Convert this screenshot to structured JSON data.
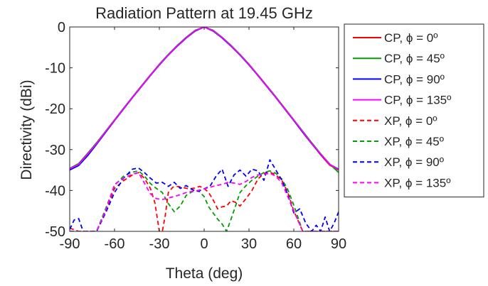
{
  "chart_data": {
    "type": "line",
    "title": "Radiation Pattern at 19.45 GHz",
    "xlabel": "Theta (deg)",
    "ylabel": "Directivity (dBi)",
    "xlim": [
      -90,
      90
    ],
    "ylim": [
      -50,
      0
    ],
    "xticks": [
      -90,
      -60,
      -30,
      0,
      30,
      60,
      90
    ],
    "xtick_labels": [
      "-90",
      "-60",
      "-30",
      "0",
      "30",
      "60",
      "90"
    ],
    "yticks": [
      0,
      -10,
      -20,
      -30,
      -40,
      -50
    ],
    "ytick_labels": [
      "0",
      "-10",
      "-20",
      "-30",
      "-40",
      "-50"
    ],
    "legend_position": "right, outside",
    "grid": false,
    "series": [
      {
        "name": "CP, ϕ = 0º",
        "color": "#ff0000",
        "dash": "solid",
        "x": [
          -90,
          -84,
          -78,
          -72,
          -66,
          -60,
          -54,
          -48,
          -42,
          -36,
          -30,
          -24,
          -18,
          -12,
          -6,
          0,
          6,
          12,
          18,
          24,
          30,
          36,
          42,
          48,
          54,
          60,
          66,
          72,
          78,
          84,
          90
        ],
        "y": [
          -34.8,
          -33.5,
          -31.0,
          -28.4,
          -25.6,
          -22.8,
          -20.0,
          -17.2,
          -14.5,
          -11.8,
          -9.2,
          -6.8,
          -4.6,
          -2.6,
          -0.9,
          0,
          -0.9,
          -2.6,
          -4.6,
          -6.8,
          -9.2,
          -11.8,
          -14.5,
          -17.2,
          -20.0,
          -22.8,
          -25.6,
          -28.4,
          -31.3,
          -33.8,
          -35.0
        ]
      },
      {
        "name": "CP, ϕ = 45º",
        "color": "#00a000",
        "dash": "solid",
        "x": [
          -90,
          -84,
          -78,
          -72,
          -66,
          -60,
          -54,
          -48,
          -42,
          -36,
          -30,
          -24,
          -18,
          -12,
          -6,
          0,
          6,
          12,
          18,
          24,
          30,
          36,
          42,
          48,
          54,
          60,
          66,
          72,
          78,
          84,
          90
        ],
        "y": [
          -34.6,
          -33.4,
          -30.9,
          -28.3,
          -25.5,
          -22.7,
          -19.9,
          -17.1,
          -14.4,
          -11.7,
          -9.1,
          -6.7,
          -4.5,
          -2.5,
          -0.8,
          0,
          -0.8,
          -2.5,
          -4.5,
          -6.7,
          -9.1,
          -11.7,
          -14.4,
          -17.1,
          -19.9,
          -22.7,
          -25.5,
          -28.3,
          -31.0,
          -33.5,
          -35.6
        ]
      },
      {
        "name": "CP, ϕ = 90º",
        "color": "#0000ff",
        "dash": "solid",
        "x": [
          -90,
          -84,
          -78,
          -72,
          -66,
          -60,
          -54,
          -48,
          -42,
          -36,
          -30,
          -24,
          -18,
          -12,
          -6,
          0,
          6,
          12,
          18,
          24,
          30,
          36,
          42,
          48,
          54,
          60,
          66,
          72,
          78,
          84,
          90
        ],
        "y": [
          -35.0,
          -33.9,
          -31.5,
          -28.7,
          -25.8,
          -22.9,
          -20.1,
          -17.3,
          -14.6,
          -11.9,
          -9.3,
          -6.9,
          -4.7,
          -2.7,
          -1.0,
          0,
          -1.0,
          -2.7,
          -4.7,
          -6.9,
          -9.3,
          -11.9,
          -14.6,
          -17.3,
          -20.1,
          -22.9,
          -25.8,
          -28.6,
          -31.2,
          -33.6,
          -34.8
        ]
      },
      {
        "name": "CP, ϕ = 135º",
        "color": "#ff00ff",
        "dash": "solid",
        "x": [
          -90,
          -84,
          -78,
          -72,
          -66,
          -60,
          -54,
          -48,
          -42,
          -36,
          -30,
          -24,
          -18,
          -12,
          -6,
          0,
          6,
          12,
          18,
          24,
          30,
          36,
          42,
          48,
          54,
          60,
          66,
          72,
          78,
          84,
          90
        ],
        "y": [
          -34.7,
          -33.6,
          -31.1,
          -28.5,
          -25.6,
          -22.8,
          -20.0,
          -17.2,
          -14.5,
          -11.8,
          -9.2,
          -6.8,
          -4.6,
          -2.6,
          -0.9,
          0,
          -0.9,
          -2.6,
          -4.6,
          -6.8,
          -9.2,
          -11.8,
          -14.5,
          -17.2,
          -20.0,
          -22.8,
          -25.6,
          -28.5,
          -31.1,
          -33.6,
          -34.9
        ]
      },
      {
        "name": "XP, ϕ = 0º",
        "color": "#ff0000",
        "dash": "dashed",
        "x": [
          -90,
          -84,
          -78,
          -72,
          -66,
          -60,
          -54,
          -48,
          -44,
          -40,
          -36,
          -33,
          -30,
          -28,
          -26,
          -24,
          -21,
          -18,
          -14,
          -10,
          -6,
          -3,
          0,
          3,
          6,
          9,
          12,
          15,
          18,
          21,
          24,
          28,
          32,
          36,
          40,
          44,
          48,
          52,
          56,
          60,
          66,
          72,
          78,
          84,
          90
        ],
        "y": [
          -49.2,
          -50.0,
          -50.0,
          -50.0,
          -45.0,
          -39.5,
          -37.6,
          -36.2,
          -35.6,
          -37.0,
          -39.5,
          -43.0,
          -50.0,
          -50.0,
          -46.0,
          -40.5,
          -39.2,
          -39.0,
          -39.3,
          -39.6,
          -39.4,
          -39.0,
          -39.5,
          -40.5,
          -42.3,
          -44.5,
          -44.0,
          -43.8,
          -42.5,
          -42.9,
          -43.8,
          -42.0,
          -40.0,
          -37.2,
          -35.8,
          -35.5,
          -36.2,
          -37.5,
          -40.5,
          -45.0,
          -50.0,
          -50.0,
          -50.0,
          -50.0,
          -50.0
        ]
      },
      {
        "name": "XP, ϕ = 45º",
        "color": "#00a000",
        "dash": "dashed",
        "x": [
          -90,
          -84,
          -78,
          -72,
          -66,
          -60,
          -54,
          -48,
          -44,
          -40,
          -36,
          -32,
          -28,
          -24,
          -20,
          -16,
          -12,
          -8,
          -4,
          0,
          3,
          6,
          9,
          12,
          15,
          18,
          21,
          24,
          28,
          32,
          36,
          40,
          44,
          48,
          52,
          56,
          60,
          66,
          72,
          78,
          84,
          90
        ],
        "y": [
          -50.0,
          -50.0,
          -50.0,
          -50.0,
          -44.5,
          -38.8,
          -36.5,
          -35.5,
          -35.2,
          -36.4,
          -38.3,
          -39.5,
          -40.5,
          -43.2,
          -45.2,
          -43.8,
          -41.2,
          -40.3,
          -40.0,
          -41.5,
          -44.0,
          -45.5,
          -47.0,
          -48.2,
          -50.0,
          -47.0,
          -43.8,
          -40.5,
          -38.8,
          -37.5,
          -36.5,
          -35.6,
          -35.2,
          -35.8,
          -37.2,
          -39.8,
          -43.6,
          -50.0,
          -50.0,
          -50.0,
          -50.0,
          -50.0
        ]
      },
      {
        "name": "XP, ϕ = 90º",
        "color": "#0000ff",
        "dash": "dashed",
        "x": [
          -90,
          -87,
          -84,
          -81,
          -78,
          -72,
          -66,
          -60,
          -54,
          -48,
          -44,
          -40,
          -36,
          -32,
          -28,
          -24,
          -20,
          -16,
          -12,
          -8,
          -4,
          0,
          4,
          8,
          12,
          16,
          20,
          24,
          28,
          32,
          36,
          40,
          44,
          48,
          52,
          56,
          60,
          64,
          68,
          72,
          75,
          78,
          81,
          84,
          87,
          90
        ],
        "y": [
          -49.5,
          -47.2,
          -46.9,
          -50.0,
          -50.0,
          -50.0,
          -45.5,
          -40.5,
          -37.0,
          -34.8,
          -34.5,
          -35.6,
          -37.0,
          -38.2,
          -38.0,
          -39.0,
          -38.0,
          -39.5,
          -38.8,
          -39.8,
          -40.2,
          -39.6,
          -38.9,
          -36.5,
          -34.8,
          -39.0,
          -36.2,
          -35.0,
          -36.5,
          -34.8,
          -35.2,
          -37.5,
          -32.5,
          -35.0,
          -37.5,
          -41.0,
          -45.5,
          -44.5,
          -48.0,
          -50.0,
          -48.5,
          -50.0,
          -46.5,
          -50.0,
          -48.0,
          -45.2
        ]
      },
      {
        "name": "XP, ϕ = 135º",
        "color": "#ff00ff",
        "dash": "dashed",
        "x": [
          -90,
          -84,
          -78,
          -72,
          -66,
          -60,
          -54,
          -48,
          -44,
          -40,
          -36,
          -32,
          -28,
          -24,
          -20,
          -16,
          -12,
          -8,
          -4,
          0,
          4,
          8,
          12,
          16,
          20,
          24,
          28,
          32,
          36,
          40,
          44,
          48,
          52,
          56,
          60,
          66,
          72,
          78,
          84,
          90
        ],
        "y": [
          -50.0,
          -50.0,
          -50.0,
          -50.0,
          -45.0,
          -38.5,
          -37.0,
          -36.0,
          -35.6,
          -38.2,
          -40.8,
          -42.0,
          -42.2,
          -41.8,
          -41.5,
          -41.0,
          -40.5,
          -40.2,
          -40.0,
          -39.6,
          -39.2,
          -38.8,
          -38.5,
          -38.0,
          -38.2,
          -38.5,
          -37.8,
          -36.8,
          -36.2,
          -36.0,
          -35.8,
          -36.5,
          -38.2,
          -41.5,
          -45.0,
          -50.0,
          -50.0,
          -50.0,
          -50.0,
          -50.0
        ]
      }
    ]
  }
}
